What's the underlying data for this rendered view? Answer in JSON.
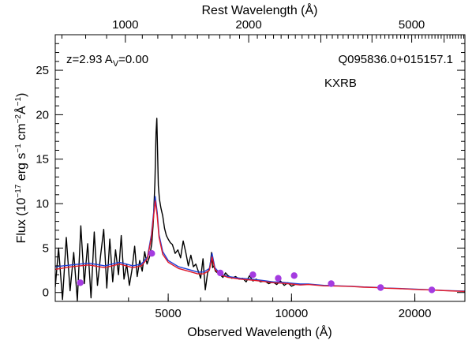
{
  "chart_data": {
    "type": "line",
    "title": "",
    "xlabel": "Observed Wavelength (Å)",
    "ylabel_text": "Flux (10",
    "ylabel_exp": "−17",
    "ylabel_mid1": " erg s",
    "ylabel_exp2": "−1",
    "ylabel_mid2": " cm",
    "ylabel_exp3": "−2",
    "ylabel_mid3": "Å",
    "ylabel_exp4": "−1",
    "ylabel_end": ")",
    "top_xlabel": "Rest Wavelength (Å)",
    "xscale": "log",
    "xlim": [
      2650,
      26500
    ],
    "ylim": [
      -1,
      29
    ],
    "x_ticks": [
      5000,
      10000,
      20000
    ],
    "x_tick_labels": [
      "5000",
      "10000",
      "20000"
    ],
    "y_ticks": [
      0,
      5,
      10,
      15,
      20,
      25
    ],
    "y_tick_labels": [
      "0",
      "5",
      "10",
      "15",
      "20",
      "25"
    ],
    "top_ticks_rest": [
      1000,
      2000,
      5000
    ],
    "top_tick_labels": [
      "1000",
      "2000",
      "5000"
    ],
    "redshift": 2.93,
    "annotation_left_prefix": "z=2.93 A",
    "annotation_left_sub": "V",
    "annotation_left_suffix": "=0.00",
    "annotation_name": "Q095836.0+015157.1",
    "annotation_class": "KXRB",
    "colors": {
      "spectrum": "#000000",
      "model_blue": "#1f3fd6",
      "model_red": "#e0182a",
      "photometry": "#a43be0"
    },
    "series": [
      {
        "role": "model-blue",
        "x": [
          2650,
          2900,
          3200,
          3500,
          3800,
          4100,
          4300,
          4450,
          4550,
          4650,
          4700,
          4750,
          4850,
          5000,
          5300,
          5600,
          5900,
          6100,
          6300,
          6400,
          6500,
          6700,
          7000,
          7500,
          8000,
          8500,
          9000,
          9500,
          10000,
          10500,
          11000,
          12000,
          13000,
          14000,
          15000,
          16000,
          17000,
          18000,
          19000,
          20000,
          22000,
          24000,
          26500
        ],
        "y": [
          2.9,
          3.1,
          3.3,
          3.0,
          3.4,
          3.0,
          3.2,
          4.0,
          6.5,
          10.8,
          9.0,
          6.5,
          4.6,
          3.6,
          2.9,
          2.6,
          2.3,
          2.3,
          2.7,
          4.4,
          2.8,
          2.1,
          1.8,
          1.6,
          1.5,
          1.35,
          1.2,
          1.15,
          1.05,
          0.95,
          0.95,
          0.8,
          0.75,
          0.7,
          0.62,
          0.58,
          0.5,
          0.47,
          0.42,
          0.38,
          0.3,
          0.22,
          0.15
        ]
      },
      {
        "role": "model-red",
        "x": [
          2650,
          2900,
          3200,
          3500,
          3800,
          4100,
          4300,
          4450,
          4550,
          4650,
          4700,
          4750,
          4850,
          5000,
          5300,
          5600,
          5900,
          6100,
          6300,
          6400,
          6500,
          6700,
          7000,
          7500,
          8000,
          8500,
          9000,
          9500,
          10000,
          10500,
          11000,
          12000,
          13000,
          14000,
          15000,
          16000,
          17000,
          18000,
          19000,
          20000,
          22000,
          24000,
          26500
        ],
        "y": [
          2.6,
          2.9,
          3.1,
          2.8,
          3.2,
          2.8,
          3.0,
          3.8,
          6.2,
          10.3,
          8.6,
          6.2,
          4.3,
          3.4,
          2.7,
          2.4,
          2.1,
          2.1,
          2.5,
          4.0,
          2.6,
          2.0,
          1.7,
          1.5,
          1.4,
          1.25,
          1.1,
          1.05,
          0.95,
          0.85,
          0.9,
          0.75,
          0.72,
          0.68,
          0.6,
          0.56,
          0.48,
          0.45,
          0.4,
          0.35,
          0.28,
          0.2,
          0.12
        ]
      },
      {
        "role": "observed-spectrum",
        "x": [
          2650,
          2700,
          2760,
          2820,
          2880,
          2940,
          3000,
          3060,
          3120,
          3180,
          3240,
          3300,
          3360,
          3420,
          3480,
          3540,
          3600,
          3660,
          3720,
          3780,
          3840,
          3900,
          3960,
          4020,
          4080,
          4140,
          4200,
          4260,
          4320,
          4380,
          4440,
          4500,
          4560,
          4600,
          4640,
          4670,
          4690,
          4710,
          4730,
          4760,
          4800,
          4850,
          4900,
          4950,
          5000,
          5060,
          5120,
          5200,
          5280,
          5360,
          5440,
          5520,
          5600,
          5680,
          5760,
          5840,
          5920,
          6000,
          6080,
          6160,
          6240,
          6320,
          6380,
          6420,
          6460,
          6520,
          6600,
          6700,
          6800,
          6900,
          7000,
          7150,
          7300,
          7450,
          7600,
          7750,
          7900,
          8050,
          8200,
          8400,
          8600,
          8800,
          9000,
          9200,
          9400,
          9600,
          9800,
          10000,
          10200
        ],
        "y": [
          0.6,
          5.0,
          -0.8,
          6.2,
          0.2,
          4.5,
          -0.9,
          7.5,
          1.0,
          5.5,
          -0.6,
          6.8,
          0.8,
          4.2,
          7.1,
          0.5,
          6.0,
          1.2,
          4.8,
          2.0,
          6.4,
          1.5,
          3.2,
          0.8,
          2.6,
          5.2,
          1.8,
          3.6,
          2.4,
          4.6,
          3.2,
          4.0,
          5.5,
          8.0,
          12.5,
          18.0,
          19.6,
          16.0,
          12.0,
          10.5,
          9.5,
          8.6,
          7.2,
          6.4,
          6.0,
          5.6,
          5.4,
          4.4,
          4.8,
          3.9,
          5.8,
          4.5,
          3.0,
          4.2,
          2.9,
          3.2,
          2.4,
          1.6,
          3.8,
          0.3,
          2.2,
          2.8,
          4.5,
          2.8,
          3.0,
          2.4,
          2.2,
          2.0,
          1.7,
          2.2,
          1.9,
          1.6,
          1.8,
          1.5,
          1.6,
          1.2,
          1.9,
          1.3,
          1.5,
          1.2,
          1.3,
          1.0,
          1.2,
          0.9,
          1.3,
          0.8,
          1.1,
          0.7,
          0.9
        ]
      }
    ],
    "photometry": {
      "x": [
        3050,
        4560,
        6700,
        8050,
        9280,
        10150,
        12500,
        16500,
        22000
      ],
      "y": [
        1.1,
        4.4,
        2.2,
        2.0,
        1.6,
        1.9,
        1.0,
        0.55,
        0.3
      ]
    }
  }
}
